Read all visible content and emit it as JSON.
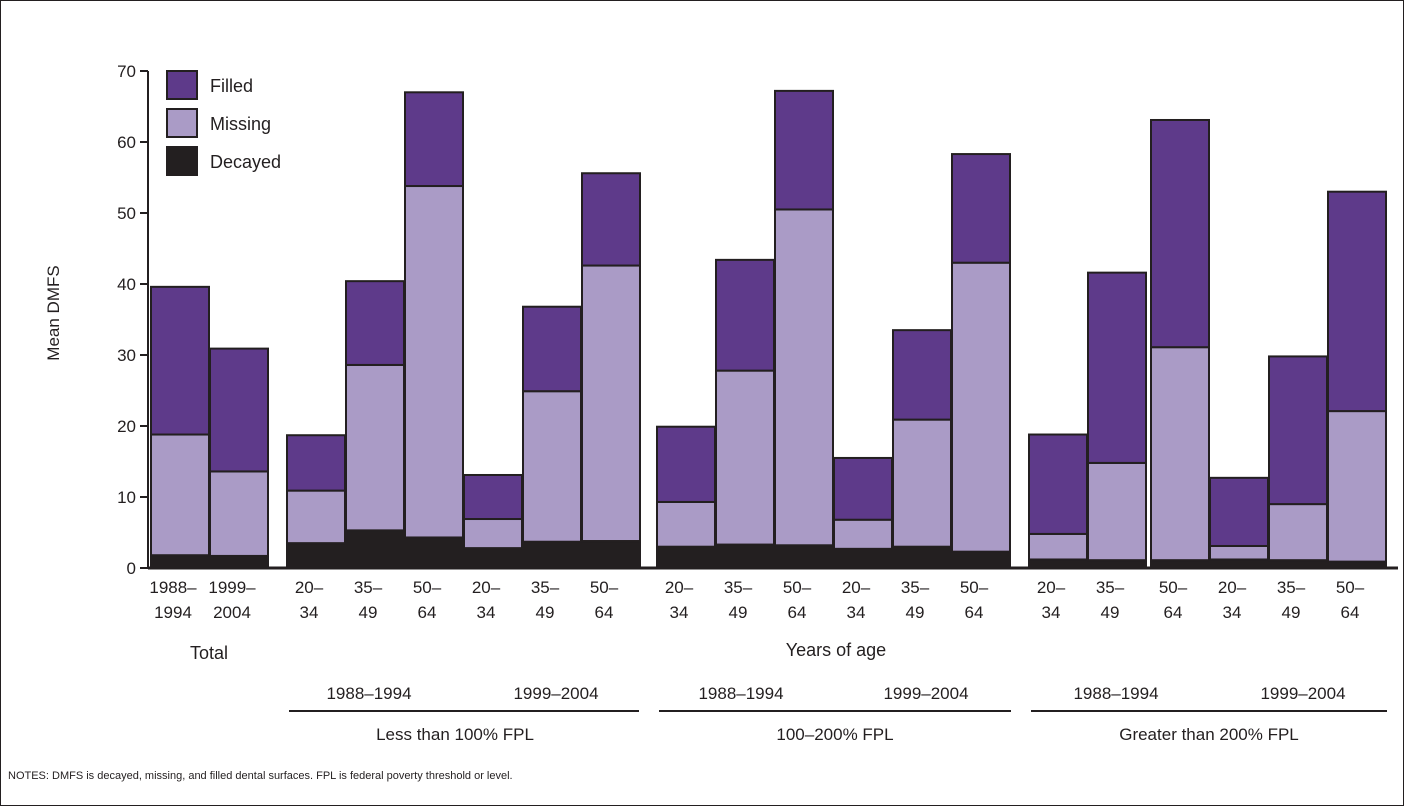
{
  "chart_data": {
    "type": "bar",
    "stacked": true,
    "ylabel": "Mean DMFS",
    "xlabel": "Years of age",
    "ylim": [
      0,
      70
    ],
    "yticks": [
      "0",
      "10",
      "20",
      "30",
      "40",
      "50",
      "60",
      "70"
    ],
    "grid": false,
    "legend_position": "top-left",
    "series": [
      {
        "name": "Decayed",
        "color": "#231f20"
      },
      {
        "name": "Missing",
        "color": "#aa9bc6"
      },
      {
        "name": "Filled",
        "color": "#5e3a8a"
      }
    ],
    "legend_order": [
      "Filled",
      "Missing",
      "Decayed"
    ],
    "categories": [
      [
        "1988–",
        "1994"
      ],
      [
        "1999–",
        "2004"
      ],
      [
        "20–",
        "34"
      ],
      [
        "35–",
        "49"
      ],
      [
        "50–",
        "64"
      ],
      [
        "20–",
        "34"
      ],
      [
        "35–",
        "49"
      ],
      [
        "50–",
        "64"
      ],
      [
        "20–",
        "34"
      ],
      [
        "35–",
        "49"
      ],
      [
        "50–",
        "64"
      ],
      [
        "20–",
        "34"
      ],
      [
        "35–",
        "49"
      ],
      [
        "50–",
        "64"
      ],
      [
        "20–",
        "34"
      ],
      [
        "35–",
        "49"
      ],
      [
        "50–",
        "64"
      ],
      [
        "20–",
        "34"
      ],
      [
        "35–",
        "49"
      ],
      [
        "50–",
        "64"
      ]
    ],
    "values": {
      "Decayed": [
        1.8,
        1.7,
        3.5,
        5.3,
        4.3,
        2.8,
        3.7,
        3.8,
        3.0,
        3.3,
        3.2,
        2.7,
        3.0,
        2.3,
        1.2,
        1.1,
        1.1,
        1.2,
        1.1,
        0.9
      ],
      "Missing": [
        17.0,
        11.9,
        7.4,
        23.3,
        49.5,
        4.1,
        21.2,
        38.8,
        6.3,
        24.5,
        47.3,
        4.1,
        17.9,
        40.7,
        3.6,
        13.7,
        30.0,
        1.9,
        7.9,
        21.2
      ],
      "Filled": [
        20.8,
        17.3,
        7.8,
        11.8,
        13.2,
        6.2,
        11.9,
        13.0,
        10.6,
        15.6,
        16.7,
        8.7,
        12.6,
        15.3,
        14.0,
        26.8,
        32.0,
        9.6,
        20.8,
        30.9
      ]
    },
    "group_labels": {
      "total": "Total",
      "periods": [
        "1988–1994",
        "1999–2004",
        "1988–1994",
        "1999–2004",
        "1988–1994",
        "1999–2004"
      ],
      "fpl": [
        "Less than 100% FPL",
        "100–200% FPL",
        "Greater than 200% FPL"
      ]
    },
    "notes": "NOTES: DMFS is decayed, missing, and filled dental surfaces.  FPL is federal poverty threshold or level."
  }
}
